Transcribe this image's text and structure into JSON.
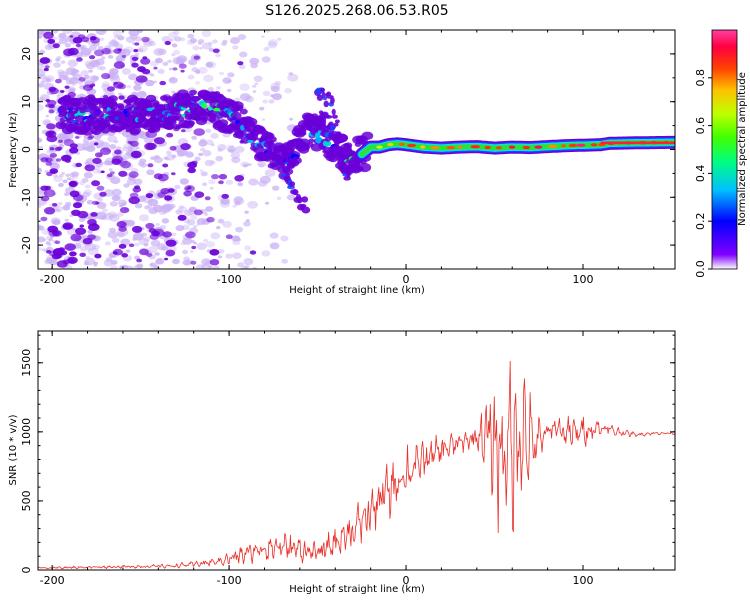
{
  "figure_title": "S126.2025.268.06.53.R05",
  "colors": {
    "snr_line": "#e8302a",
    "track_core": "#ff2030",
    "track_green": "#30e030",
    "track_cyan": "#00e0ff",
    "track_blue": "#2040ff",
    "scatter_violet": "#6a00d8",
    "scatter_light": "#c9b0f5"
  },
  "chart_data": [
    {
      "type": "heatmap",
      "title": "",
      "xlabel": "Height of straight line (km)",
      "ylabel": "Frequency (Hz)",
      "xlim": [
        -208,
        152
      ],
      "ylim": [
        -25,
        25
      ],
      "x_ticks": [
        -200,
        -100,
        0,
        100
      ],
      "x_tick_labels": [
        "-200",
        "-100",
        "0",
        "100"
      ],
      "y_ticks": [
        -20,
        -10,
        0,
        10,
        20
      ],
      "y_tick_labels": [
        "-20",
        "-10",
        "0",
        "10",
        "20"
      ],
      "colorbar": {
        "label": "Normalized spectral amplitude",
        "range": [
          0.0,
          1.0
        ],
        "ticks": [
          0.0,
          0.2,
          0.4,
          0.6,
          0.8
        ],
        "tick_labels": [
          "0.0",
          "0.2",
          "0.4",
          "0.6",
          "0.8"
        ],
        "colormap": [
          "#ffffff",
          "#8000ff",
          "#0000ff",
          "#00c0ff",
          "#00ff80",
          "#40ff00",
          "#c0ff00",
          "#ffc000",
          "#ff4000",
          "#ff0040",
          "#ff40a0"
        ]
      },
      "track": {
        "x": [
          -190,
          -180,
          -170,
          -160,
          -150,
          -140,
          -130,
          -120,
          -112,
          -105,
          -100,
          -95,
          -90,
          -85,
          -80,
          -75,
          -70,
          -65,
          -60,
          -55,
          -50,
          -45,
          -40,
          -35,
          -30,
          -25,
          -20,
          -15,
          -10,
          -5,
          0,
          10,
          20,
          30,
          40,
          50,
          60,
          70,
          80,
          90,
          100,
          110,
          115,
          130,
          152
        ],
        "freq": [
          7,
          7.5,
          7,
          7.5,
          7,
          7.5,
          8,
          9,
          9.5,
          8,
          7,
          6,
          4,
          2,
          0.5,
          -1,
          -3,
          -2,
          2,
          4,
          3.5,
          2,
          1,
          -1,
          -2,
          -1,
          0.5,
          0.5,
          1,
          1.2,
          1,
          0.5,
          0.3,
          0.5,
          0.6,
          0.3,
          0.5,
          0.4,
          0.6,
          0.8,
          0.9,
          1.0,
          1.3,
          1.4,
          1.5
        ],
        "amplitude": [
          0.3,
          0.3,
          0.3,
          0.3,
          0.3,
          0.32,
          0.35,
          0.4,
          0.42,
          0.4,
          0.35,
          0.32,
          0.3,
          0.28,
          0.3,
          0.3,
          0.28,
          0.25,
          0.28,
          0.3,
          0.3,
          0.3,
          0.32,
          0.35,
          0.4,
          0.45,
          0.55,
          0.6,
          0.62,
          0.65,
          0.7,
          0.75,
          0.75,
          0.78,
          0.8,
          0.78,
          0.8,
          0.8,
          0.78,
          0.8,
          0.82,
          0.85,
          0.9,
          0.9,
          0.9
        ]
      },
      "side_branches": [
        {
          "x": [
            -72,
            -68,
            -64,
            -60,
            -56
          ],
          "freq": [
            -2,
            -5,
            -8,
            -11,
            -12
          ]
        },
        {
          "x": [
            -48,
            -44,
            -40,
            -36,
            -32
          ],
          "freq": [
            8,
            6,
            3,
            -3,
            -7
          ]
        },
        {
          "x": [
            -50,
            -42,
            -38
          ],
          "freq": [
            12,
            10,
            4
          ]
        }
      ]
    },
    {
      "type": "line",
      "title": "",
      "xlabel": "Height of straight line (km)",
      "ylabel": "SNR (10 * v/v)",
      "xlim": [
        -208,
        152
      ],
      "ylim": [
        0,
        1730
      ],
      "x_ticks": [
        -200,
        -100,
        0,
        100
      ],
      "x_tick_labels": [
        "-200",
        "-100",
        "0",
        "100"
      ],
      "y_ticks": [
        0,
        500,
        1000,
        1500
      ],
      "y_tick_labels": [
        "0",
        "500",
        "1000",
        "1500"
      ],
      "series": [
        {
          "name": "SNR",
          "envelope_x": [
            -208,
            -180,
            -150,
            -130,
            -110,
            -100,
            -90,
            -80,
            -70,
            -60,
            -50,
            -40,
            -30,
            -20,
            -10,
            0,
            10,
            20,
            30,
            40,
            45,
            50,
            55,
            60,
            65,
            70,
            75,
            80,
            85,
            90,
            95,
            100,
            110,
            120,
            130,
            140,
            152
          ],
          "envelope_mid": [
            15,
            20,
            25,
            30,
            55,
            80,
            120,
            160,
            170,
            150,
            120,
            200,
            290,
            420,
            580,
            700,
            800,
            870,
            920,
            960,
            980,
            880,
            860,
            900,
            1000,
            920,
            920,
            1000,
            1040,
            990,
            990,
            1010,
            1030,
            1000,
            980,
            990,
            990
          ],
          "envelope_amp": [
            10,
            12,
            15,
            20,
            40,
            60,
            100,
            130,
            150,
            120,
            90,
            150,
            200,
            250,
            280,
            260,
            180,
            140,
            100,
            100,
            350,
            650,
            700,
            820,
            650,
            500,
            250,
            120,
            80,
            150,
            150,
            150,
            90,
            40,
            20,
            15,
            12
          ]
        }
      ]
    }
  ]
}
